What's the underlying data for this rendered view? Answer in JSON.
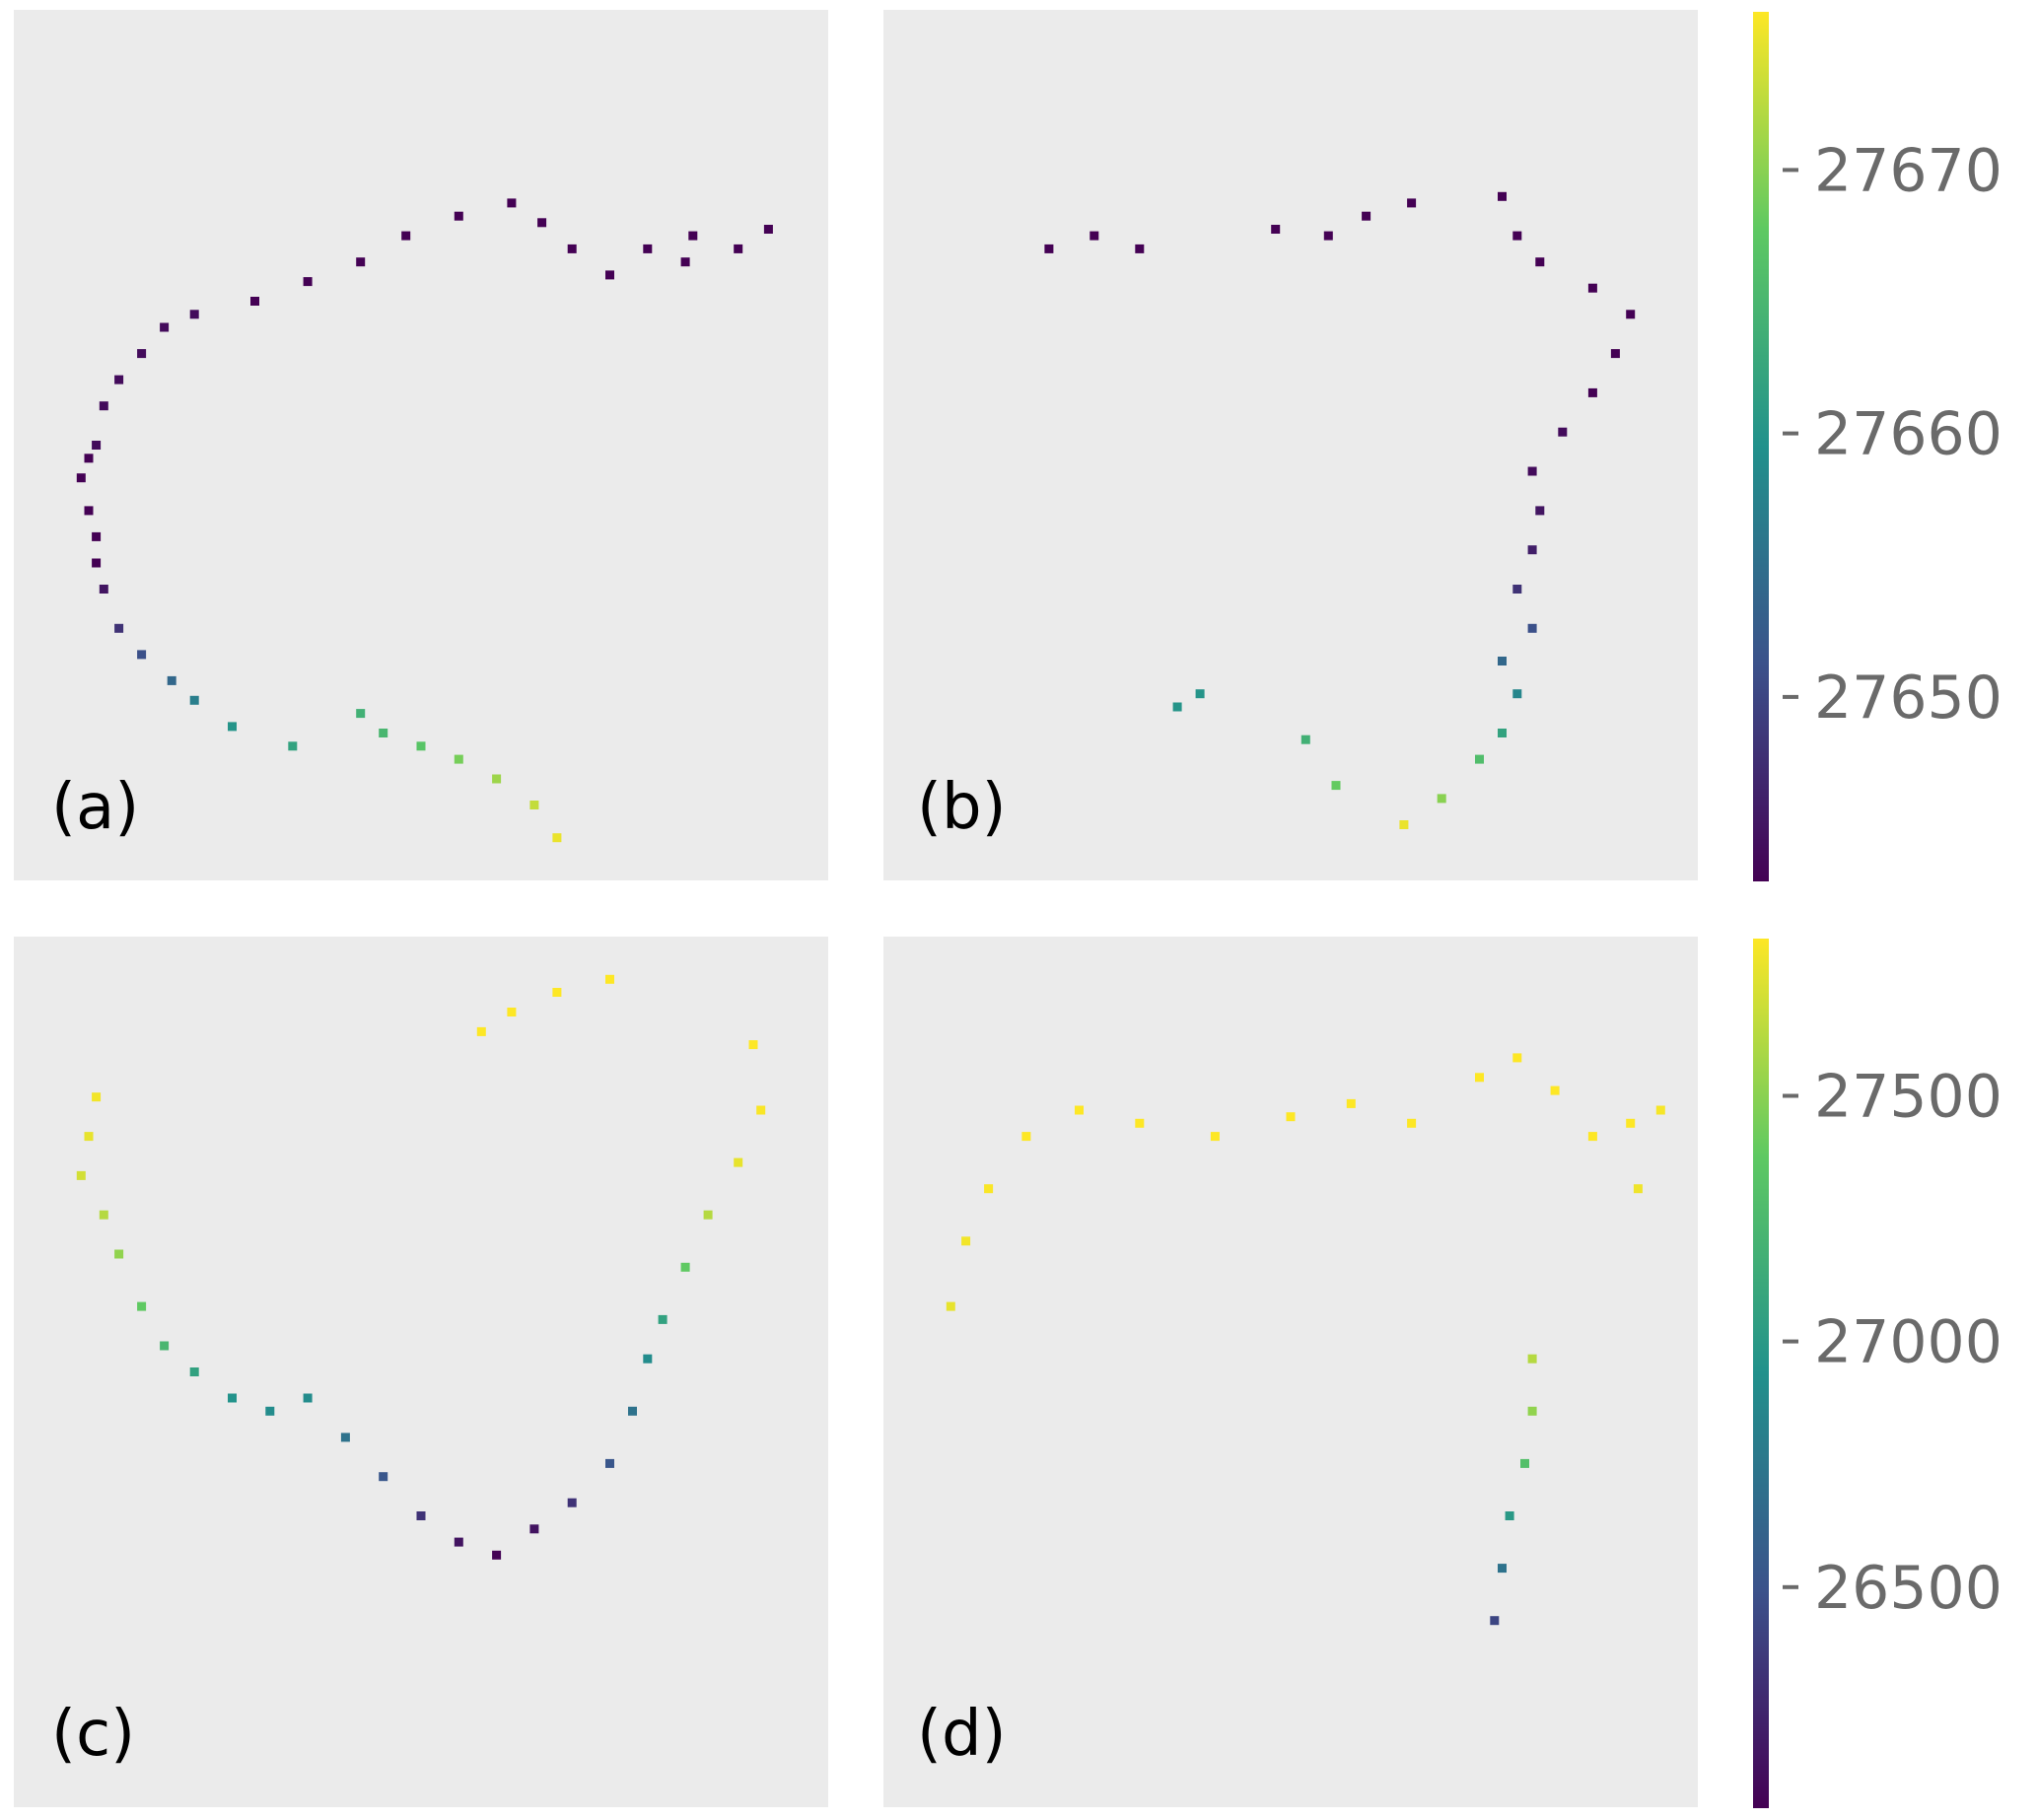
{
  "figure": {
    "panel_labels": [
      "(a)",
      "(b)",
      "(c)",
      "(d)"
    ]
  },
  "colormap": {
    "name": "viridis",
    "stops": [
      "#440154",
      "#3b528b",
      "#21918c",
      "#5ec962",
      "#fde725"
    ]
  },
  "chart_data": [
    {
      "type": "scatter",
      "panel": "(a)",
      "colorbar": {
        "ticks": [
          27650,
          27660,
          27670
        ],
        "range": [
          27643,
          27676
        ]
      },
      "series": [
        {
          "values": [
            [
              0.06,
              0.4
            ],
            [
              0.05,
              0.45
            ],
            [
              0.07,
              0.36
            ],
            [
              0.07,
              0.32
            ],
            [
              0.06,
              0.48
            ],
            [
              0.07,
              0.5
            ],
            [
              0.08,
              0.56
            ],
            [
              0.1,
              0.6
            ],
            [
              0.13,
              0.64
            ],
            [
              0.16,
              0.68
            ],
            [
              0.2,
              0.7
            ],
            [
              0.28,
              0.72
            ],
            [
              0.35,
              0.75
            ],
            [
              0.42,
              0.78
            ],
            [
              0.48,
              0.82
            ],
            [
              0.55,
              0.85
            ],
            [
              0.62,
              0.87
            ],
            [
              0.66,
              0.84
            ],
            [
              0.7,
              0.8
            ],
            [
              0.75,
              0.76
            ],
            [
              0.8,
              0.8
            ],
            [
              0.85,
              0.78
            ],
            [
              0.92,
              0.8
            ],
            [
              0.96,
              0.83
            ],
            [
              0.86,
              0.82
            ]
          ],
          "color_values": [
            27643,
            27643,
            27643,
            27643,
            27643,
            27644,
            27644,
            27644,
            27644,
            27644,
            27644,
            27643,
            27643,
            27643,
            27643,
            27643,
            27643,
            27643,
            27643,
            27643,
            27643,
            27643,
            27643,
            27643,
            27643
          ]
        },
        {
          "values": [
            [
              0.08,
              0.28
            ],
            [
              0.1,
              0.22
            ],
            [
              0.13,
              0.18
            ],
            [
              0.17,
              0.14
            ],
            [
              0.2,
              0.11
            ],
            [
              0.25,
              0.07
            ],
            [
              0.33,
              0.04
            ]
          ],
          "color_values": [
            27645,
            27648,
            27651,
            27654,
            27657,
            27660,
            27662
          ]
        },
        {
          "values": [
            [
              0.42,
              0.09
            ],
            [
              0.45,
              0.06
            ],
            [
              0.5,
              0.04
            ],
            [
              0.55,
              0.02
            ],
            [
              0.6,
              -0.01
            ],
            [
              0.65,
              -0.05
            ],
            [
              0.68,
              -0.1
            ]
          ],
          "color_values": [
            27664,
            27665,
            27667,
            27669,
            27671,
            27673,
            27675
          ]
        }
      ]
    },
    {
      "type": "scatter",
      "panel": "(b)",
      "colorbar": {
        "ticks": [
          27650,
          27660,
          27670
        ],
        "range": [
          27643,
          27676
        ]
      },
      "series": [
        {
          "values": [
            [
              0.18,
              0.8
            ],
            [
              0.24,
              0.82
            ],
            [
              0.3,
              0.8
            ],
            [
              0.48,
              0.83
            ],
            [
              0.55,
              0.82
            ],
            [
              0.6,
              0.85
            ],
            [
              0.66,
              0.87
            ],
            [
              0.78,
              0.88
            ],
            [
              0.8,
              0.82
            ],
            [
              0.83,
              0.78
            ],
            [
              0.9,
              0.74
            ],
            [
              0.95,
              0.7
            ],
            [
              0.93,
              0.64
            ],
            [
              0.9,
              0.58
            ],
            [
              0.86,
              0.52
            ],
            [
              0.82,
              0.46
            ],
            [
              0.83,
              0.4
            ],
            [
              0.82,
              0.34
            ],
            [
              0.8,
              0.28
            ],
            [
              0.82,
              0.22
            ]
          ],
          "color_values": [
            27643,
            27643,
            27643,
            27643,
            27643,
            27643,
            27643,
            27643,
            27643,
            27643,
            27643,
            27643,
            27643,
            27643,
            27644,
            27644,
            27645,
            27646,
            27648,
            27651
          ]
        },
        {
          "values": [
            [
              0.78,
              0.17
            ],
            [
              0.8,
              0.12
            ],
            [
              0.78,
              0.06
            ],
            [
              0.75,
              0.02
            ],
            [
              0.7,
              -0.04
            ],
            [
              0.65,
              -0.08
            ]
          ],
          "color_values": [
            27654,
            27658,
            27662,
            27666,
            27670,
            27675
          ]
        },
        {
          "values": [
            [
              0.35,
              0.1
            ],
            [
              0.38,
              0.12
            ],
            [
              0.52,
              0.05
            ],
            [
              0.56,
              -0.02
            ]
          ],
          "color_values": [
            27660,
            27660,
            27664,
            27668
          ]
        }
      ]
    },
    {
      "type": "scatter",
      "panel": "(c)",
      "colorbar": {
        "ticks": [
          26500,
          27000,
          27500
        ],
        "range": [
          26050,
          27820
        ]
      },
      "series": [
        {
          "values": [
            [
              0.07,
              0.92
            ],
            [
              0.06,
              0.86
            ],
            [
              0.05,
              0.8
            ],
            [
              0.08,
              0.74
            ],
            [
              0.1,
              0.68
            ],
            [
              0.13,
              0.6
            ],
            [
              0.16,
              0.54
            ],
            [
              0.2,
              0.5
            ],
            [
              0.25,
              0.46
            ],
            [
              0.3,
              0.44
            ],
            [
              0.35,
              0.46
            ],
            [
              0.4,
              0.4
            ],
            [
              0.45,
              0.34
            ],
            [
              0.5,
              0.28
            ],
            [
              0.55,
              0.24
            ],
            [
              0.6,
              0.22
            ],
            [
              0.65,
              0.26
            ],
            [
              0.7,
              0.3
            ],
            [
              0.75,
              0.36
            ],
            [
              0.78,
              0.44
            ]
          ],
          "color_values": [
            27790,
            27760,
            27700,
            27620,
            27520,
            27380,
            27230,
            27060,
            26950,
            26900,
            26900,
            26720,
            26520,
            26320,
            26150,
            26060,
            26150,
            26320,
            26520,
            26720
          ]
        },
        {
          "values": [
            [
              0.8,
              0.52
            ],
            [
              0.82,
              0.58
            ],
            [
              0.85,
              0.66
            ],
            [
              0.88,
              0.74
            ],
            [
              0.92,
              0.82
            ],
            [
              0.95,
              0.9
            ],
            [
              0.62,
              1.05
            ],
            [
              0.68,
              1.08
            ],
            [
              0.75,
              1.1
            ],
            [
              0.58,
              1.02
            ],
            [
              0.94,
              1.0
            ]
          ],
          "color_values": [
            26900,
            27060,
            27380,
            27620,
            27760,
            27810,
            27820,
            27820,
            27820,
            27820,
            27820
          ]
        }
      ]
    },
    {
      "type": "scatter",
      "panel": "(d)",
      "colorbar": {
        "ticks": [
          26500,
          27000,
          27500
        ],
        "range": [
          26050,
          27820
        ]
      },
      "series": [
        {
          "values": [
            [
              0.05,
              0.6
            ],
            [
              0.07,
              0.7
            ],
            [
              0.1,
              0.78
            ],
            [
              0.15,
              0.86
            ],
            [
              0.22,
              0.9
            ],
            [
              0.3,
              0.88
            ],
            [
              0.4,
              0.86
            ],
            [
              0.5,
              0.89
            ],
            [
              0.58,
              0.91
            ],
            [
              0.66,
              0.88
            ],
            [
              0.75,
              0.95
            ],
            [
              0.8,
              0.98
            ],
            [
              0.85,
              0.93
            ],
            [
              0.9,
              0.86
            ],
            [
              0.95,
              0.88
            ],
            [
              0.99,
              0.9
            ],
            [
              0.96,
              0.78
            ]
          ],
          "color_values": [
            27760,
            27790,
            27810,
            27820,
            27820,
            27820,
            27820,
            27820,
            27820,
            27820,
            27820,
            27820,
            27820,
            27820,
            27820,
            27800,
            27780
          ]
        },
        {
          "values": [
            [
              0.82,
              0.52
            ],
            [
              0.82,
              0.44
            ],
            [
              0.81,
              0.36
            ],
            [
              0.79,
              0.28
            ],
            [
              0.78,
              0.2
            ],
            [
              0.77,
              0.12
            ]
          ],
          "color_values": [
            27620,
            27520,
            27300,
            27000,
            26720,
            26420
          ]
        }
      ]
    }
  ]
}
